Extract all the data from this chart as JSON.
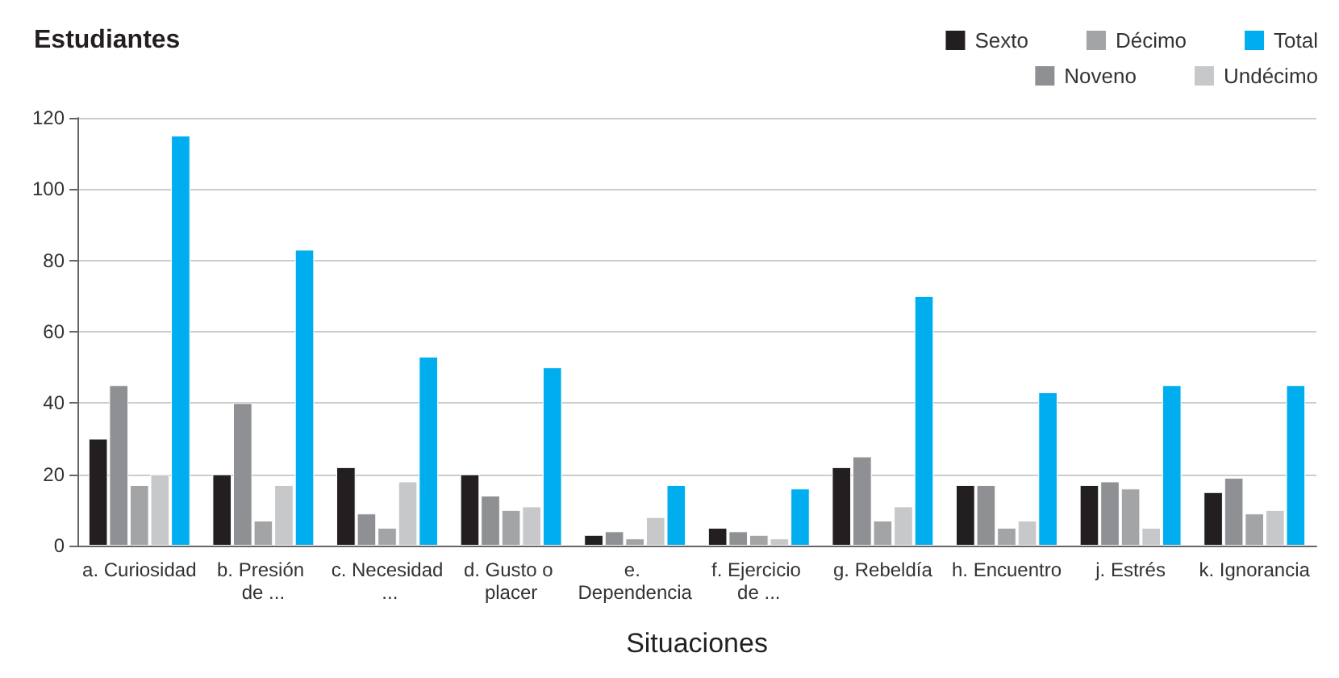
{
  "chart_data": {
    "type": "bar",
    "ylabel": "Estudiantes",
    "xlabel": "Situaciones",
    "categories": [
      "a. Curiosidad",
      "b. Presión de ...",
      "c. Necesidad ...",
      "d. Gusto o placer",
      "e. Dependencia",
      "f. Ejercicio de ...",
      "g. Rebeldía",
      "h. Encuentro",
      "j. Estrés",
      "k. Ignorancia"
    ],
    "series": [
      {
        "name": "Sexto",
        "color": "#231f20",
        "values": [
          30,
          20,
          22,
          20,
          3,
          5,
          22,
          17,
          17,
          15
        ]
      },
      {
        "name": "Noveno",
        "color": "#8f9093",
        "values": [
          45,
          40,
          9,
          14,
          4,
          4,
          25,
          17,
          18,
          19
        ]
      },
      {
        "name": "Décimo",
        "color": "#a3a4a6",
        "values": [
          17,
          7,
          5,
          10,
          2,
          3,
          7,
          5,
          16,
          9
        ]
      },
      {
        "name": "Undécimo",
        "color": "#c7c8ca",
        "values": [
          20,
          17,
          18,
          11,
          8,
          2,
          11,
          7,
          5,
          10
        ]
      },
      {
        "name": "Total",
        "color": "#00aeef",
        "values": [
          115,
          83,
          53,
          50,
          17,
          16,
          70,
          43,
          45,
          45
        ]
      }
    ],
    "ylim": [
      0,
      120
    ],
    "yticks": [
      0,
      20,
      40,
      60,
      80,
      100,
      120
    ],
    "grid": "y",
    "legend": "top right"
  }
}
